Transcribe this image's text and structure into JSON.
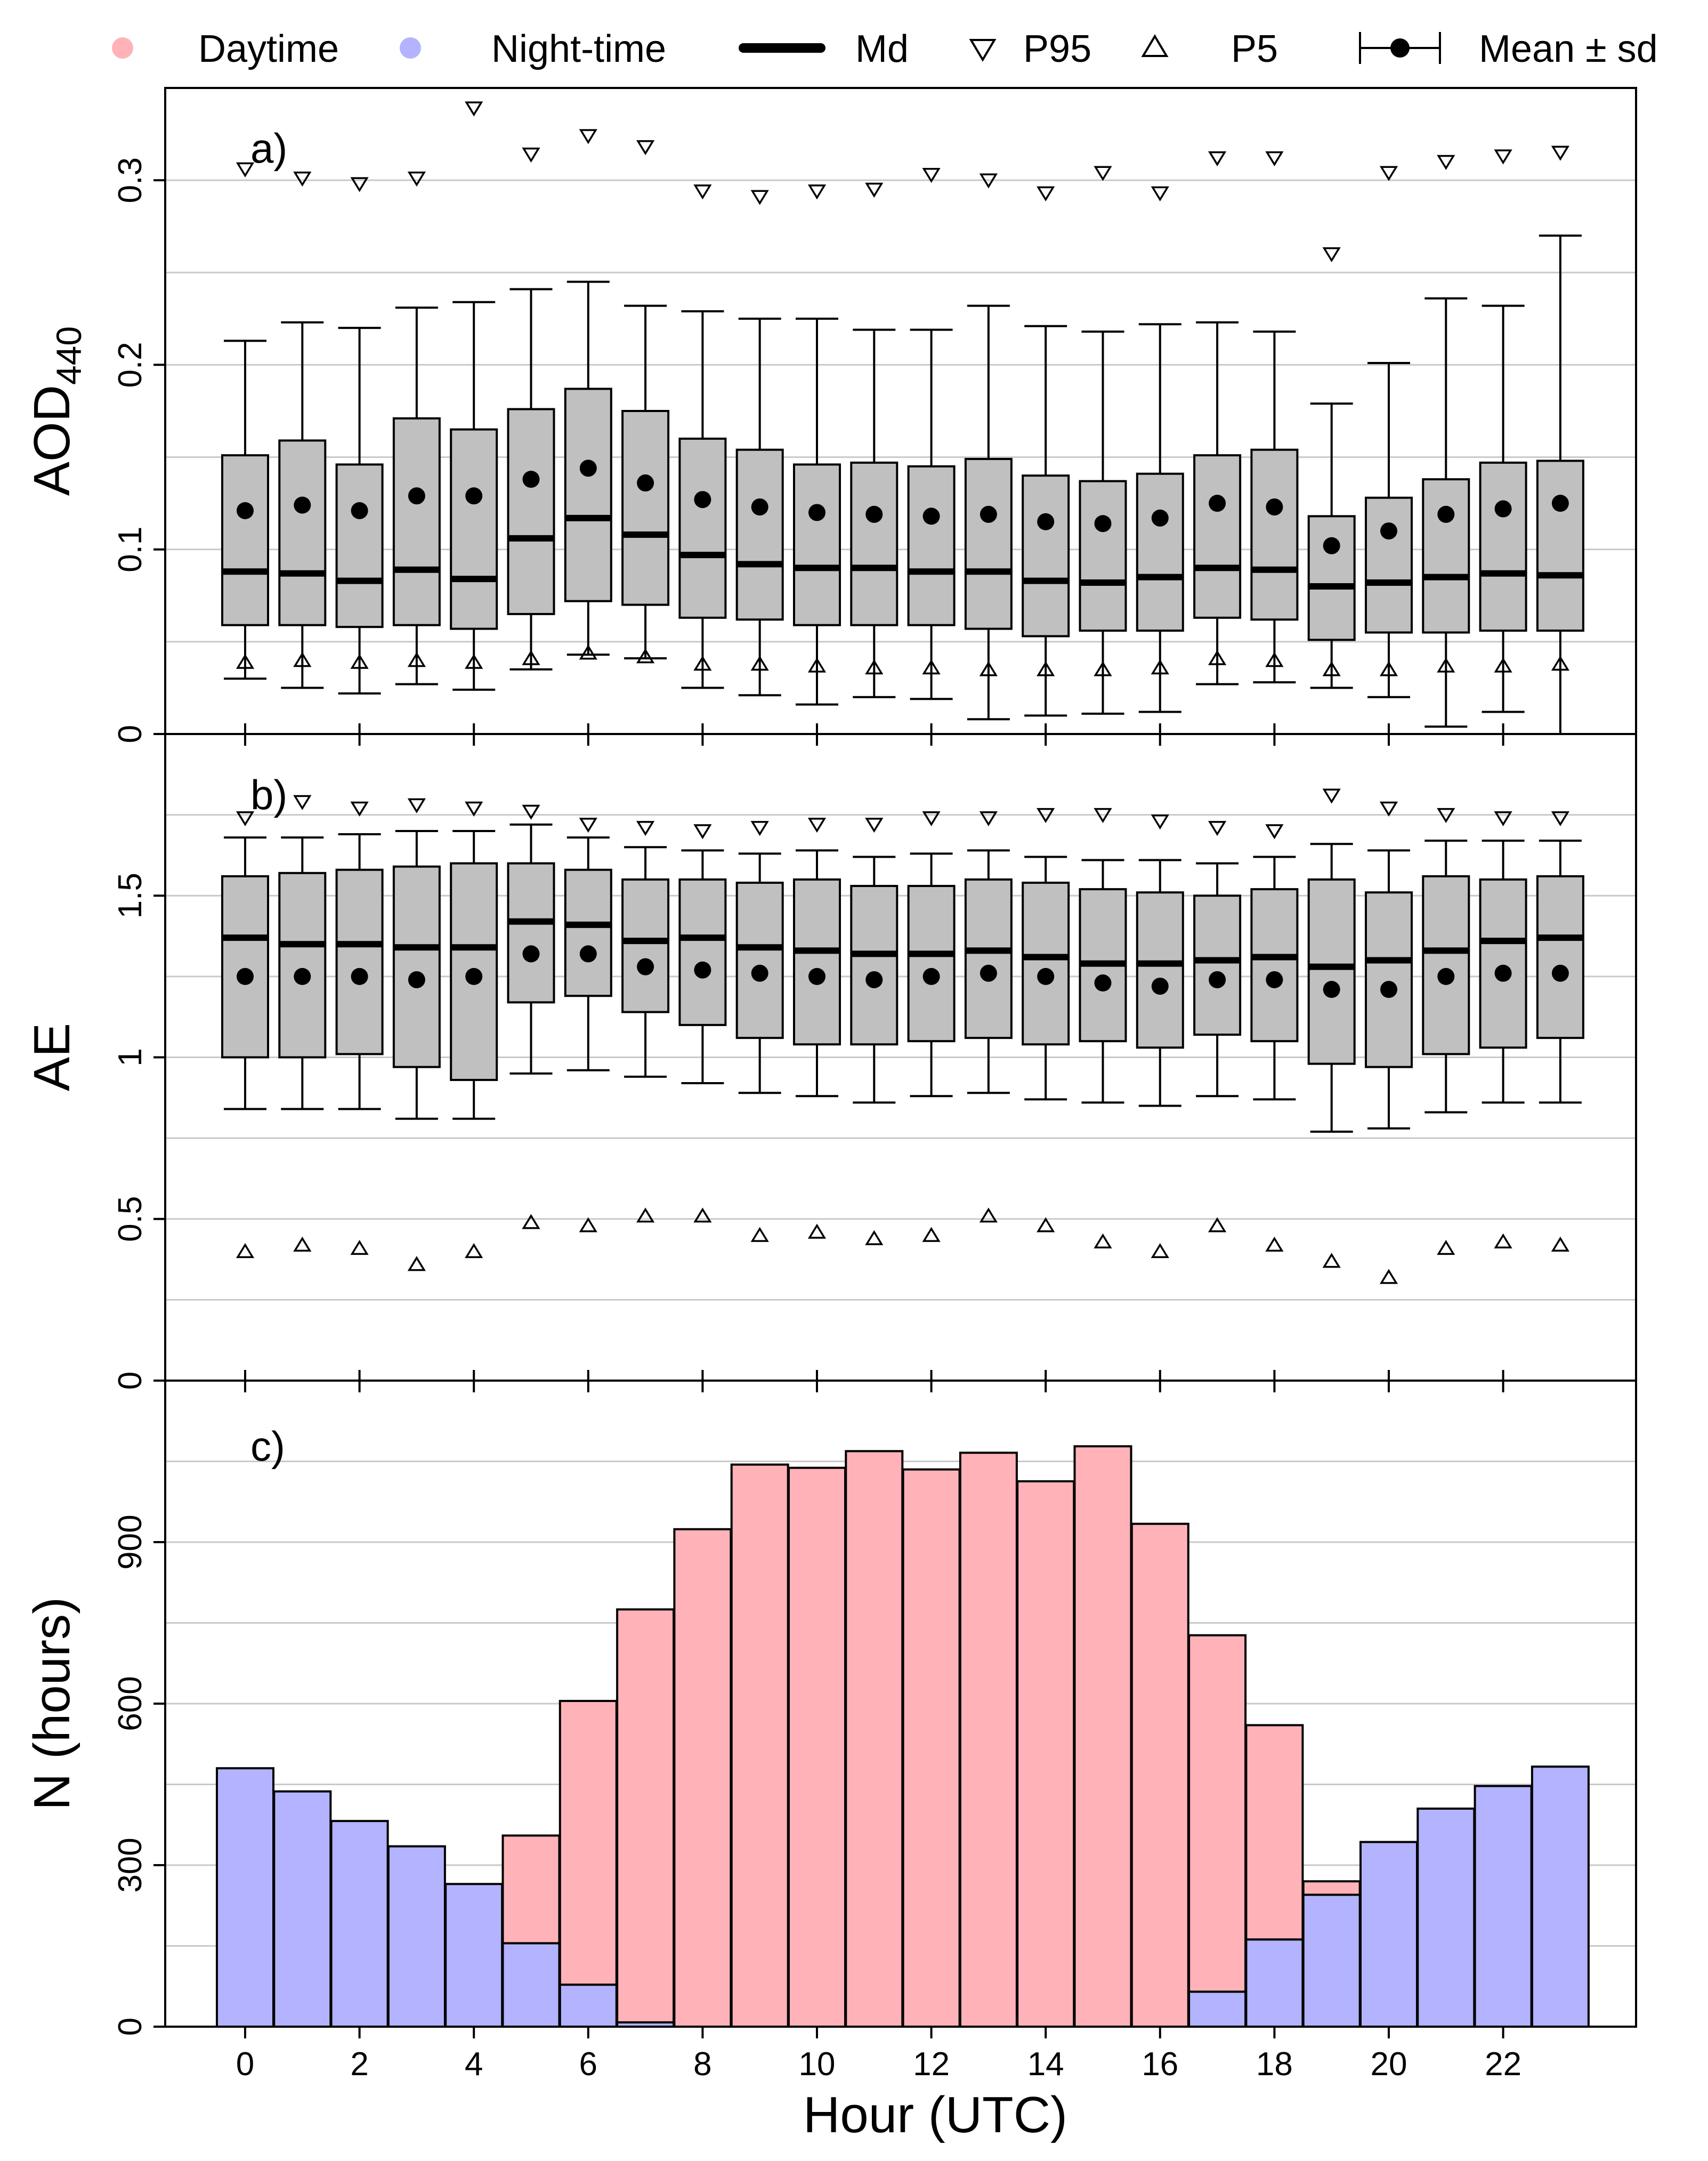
{
  "colors": {
    "day": "#FFB3B8",
    "night": "#B3B3FF",
    "box": "#C0C0C0"
  },
  "legend": {
    "daytime": "Daytime",
    "nighttime": "Night-time",
    "median": "Md",
    "p95": "P95",
    "p5": "P5",
    "mean_sd": "Mean ± sd"
  },
  "x_axis": {
    "title": "Hour (UTC)",
    "ticks": [
      "0",
      "2",
      "4",
      "6",
      "8",
      "10",
      "12",
      "14",
      "16",
      "18",
      "20",
      "22"
    ]
  },
  "chart_data": [
    {
      "type": "box",
      "panel_label": "a)",
      "ylabel_main": "AOD",
      "ylabel_sub": "440",
      "ylim": [
        0,
        0.35
      ],
      "yticks": [
        "0",
        "0.1",
        "0.2",
        "0.3"
      ],
      "hours": [
        0,
        1,
        2,
        3,
        4,
        5,
        6,
        7,
        8,
        9,
        10,
        11,
        12,
        13,
        14,
        15,
        16,
        17,
        18,
        19,
        20,
        21,
        22,
        23
      ],
      "q1": [
        0.059,
        0.059,
        0.058,
        0.059,
        0.057,
        0.065,
        0.072,
        0.07,
        0.063,
        0.062,
        0.059,
        0.059,
        0.059,
        0.057,
        0.053,
        0.056,
        0.056,
        0.063,
        0.062,
        0.051,
        0.055,
        0.055,
        0.056,
        0.056
      ],
      "median": [
        0.088,
        0.087,
        0.083,
        0.089,
        0.084,
        0.106,
        0.117,
        0.108,
        0.097,
        0.092,
        0.09,
        0.09,
        0.088,
        0.088,
        0.083,
        0.082,
        0.085,
        0.09,
        0.089,
        0.08,
        0.082,
        0.085,
        0.087,
        0.086
      ],
      "q3": [
        0.151,
        0.159,
        0.146,
        0.171,
        0.165,
        0.176,
        0.187,
        0.175,
        0.16,
        0.154,
        0.146,
        0.147,
        0.145,
        0.149,
        0.14,
        0.137,
        0.141,
        0.151,
        0.154,
        0.118,
        0.128,
        0.138,
        0.147,
        0.148
      ],
      "mean": [
        0.121,
        0.124,
        0.121,
        0.129,
        0.129,
        0.138,
        0.144,
        0.136,
        0.127,
        0.123,
        0.12,
        0.119,
        0.118,
        0.119,
        0.115,
        0.114,
        0.117,
        0.125,
        0.123,
        0.102,
        0.11,
        0.119,
        0.122,
        0.125
      ],
      "sd_low": [
        0.03,
        0.025,
        0.022,
        0.027,
        0.024,
        0.035,
        0.043,
        0.041,
        0.025,
        0.021,
        0.016,
        0.02,
        0.019,
        0.008,
        0.01,
        0.011,
        0.012,
        0.027,
        0.028,
        0.025,
        0.02,
        0.004,
        0.012,
        0.0
      ],
      "sd_high": [
        0.213,
        0.223,
        0.22,
        0.231,
        0.234,
        0.241,
        0.245,
        0.232,
        0.229,
        0.225,
        0.225,
        0.219,
        0.219,
        0.232,
        0.221,
        0.218,
        0.222,
        0.223,
        0.218,
        0.179,
        0.201,
        0.236,
        0.232,
        0.27
      ],
      "p95": [
        0.306,
        0.301,
        0.298,
        0.301,
        0.339,
        0.314,
        0.324,
        0.318,
        0.294,
        0.291,
        0.294,
        0.295,
        0.303,
        0.3,
        0.293,
        0.304,
        0.293,
        0.312,
        0.312,
        0.26,
        0.304,
        0.31,
        0.313,
        0.315
      ],
      "p5": [
        0.039,
        0.04,
        0.039,
        0.04,
        0.039,
        0.041,
        0.044,
        0.042,
        0.038,
        0.038,
        0.037,
        0.036,
        0.036,
        0.035,
        0.035,
        0.035,
        0.036,
        0.041,
        0.04,
        0.035,
        0.035,
        0.037,
        0.037,
        0.038
      ]
    },
    {
      "type": "box",
      "panel_label": "b)",
      "ylabel": "AE",
      "ylim": [
        0,
        2.0
      ],
      "yticks": [
        "0",
        "0.5",
        "1",
        "1.5"
      ],
      "hours": [
        0,
        1,
        2,
        3,
        4,
        5,
        6,
        7,
        8,
        9,
        10,
        11,
        12,
        13,
        14,
        15,
        16,
        17,
        18,
        19,
        20,
        21,
        22,
        23
      ],
      "q1": [
        1.0,
        1.0,
        1.01,
        0.97,
        0.93,
        1.17,
        1.19,
        1.14,
        1.1,
        1.06,
        1.04,
        1.04,
        1.05,
        1.06,
        1.04,
        1.05,
        1.03,
        1.07,
        1.05,
        0.98,
        0.97,
        1.01,
        1.03,
        1.06
      ],
      "median": [
        1.37,
        1.35,
        1.35,
        1.34,
        1.34,
        1.42,
        1.41,
        1.36,
        1.37,
        1.34,
        1.33,
        1.32,
        1.32,
        1.33,
        1.31,
        1.29,
        1.29,
        1.3,
        1.31,
        1.28,
        1.3,
        1.33,
        1.36,
        1.37
      ],
      "q3": [
        1.56,
        1.57,
        1.58,
        1.59,
        1.6,
        1.6,
        1.58,
        1.55,
        1.55,
        1.54,
        1.55,
        1.53,
        1.53,
        1.55,
        1.54,
        1.52,
        1.51,
        1.5,
        1.52,
        1.55,
        1.51,
        1.56,
        1.55,
        1.56
      ],
      "mean": [
        1.25,
        1.25,
        1.25,
        1.24,
        1.25,
        1.32,
        1.32,
        1.28,
        1.27,
        1.26,
        1.25,
        1.24,
        1.25,
        1.26,
        1.25,
        1.23,
        1.22,
        1.24,
        1.24,
        1.21,
        1.21,
        1.25,
        1.26,
        1.26
      ],
      "sd_low": [
        0.84,
        0.84,
        0.84,
        0.81,
        0.81,
        0.95,
        0.96,
        0.94,
        0.92,
        0.89,
        0.88,
        0.86,
        0.88,
        0.89,
        0.87,
        0.86,
        0.85,
        0.88,
        0.87,
        0.77,
        0.78,
        0.83,
        0.86,
        0.86
      ],
      "sd_high": [
        1.68,
        1.68,
        1.69,
        1.7,
        1.7,
        1.72,
        1.68,
        1.65,
        1.64,
        1.63,
        1.64,
        1.62,
        1.63,
        1.64,
        1.62,
        1.61,
        1.61,
        1.6,
        1.62,
        1.66,
        1.64,
        1.67,
        1.67,
        1.67
      ],
      "p95": [
        1.74,
        1.79,
        1.77,
        1.78,
        1.77,
        1.76,
        1.72,
        1.71,
        1.7,
        1.71,
        1.72,
        1.72,
        1.74,
        1.74,
        1.75,
        1.75,
        1.73,
        1.71,
        1.7,
        1.81,
        1.77,
        1.75,
        1.74,
        1.74
      ],
      "p5": [
        0.4,
        0.42,
        0.41,
        0.36,
        0.4,
        0.49,
        0.48,
        0.51,
        0.51,
        0.45,
        0.46,
        0.44,
        0.45,
        0.51,
        0.48,
        0.43,
        0.4,
        0.48,
        0.42,
        0.37,
        0.32,
        0.41,
        0.43,
        0.42
      ]
    },
    {
      "type": "stacked_bar",
      "panel_label": "c)",
      "ylabel": "N (hours)",
      "ylim": [
        0,
        1200
      ],
      "yticks": [
        "0",
        "300",
        "600",
        "900"
      ],
      "hours": [
        0,
        1,
        2,
        3,
        4,
        5,
        6,
        7,
        8,
        9,
        10,
        11,
        12,
        13,
        14,
        15,
        16,
        17,
        18,
        19,
        20,
        21,
        22,
        23
      ],
      "series": [
        {
          "name": "Night-time",
          "values": [
            480,
            437,
            382,
            335,
            265,
            155,
            78,
            8,
            0,
            0,
            0,
            0,
            0,
            0,
            0,
            0,
            0,
            65,
            162,
            245,
            343,
            405,
            447,
            483
          ]
        },
        {
          "name": "Daytime",
          "values": [
            0,
            0,
            0,
            0,
            0,
            200,
            527,
            767,
            924,
            1044,
            1038,
            1069,
            1035,
            1066,
            1013,
            1078,
            934,
            662,
            398,
            25,
            0,
            0,
            0,
            0
          ]
        }
      ]
    }
  ]
}
